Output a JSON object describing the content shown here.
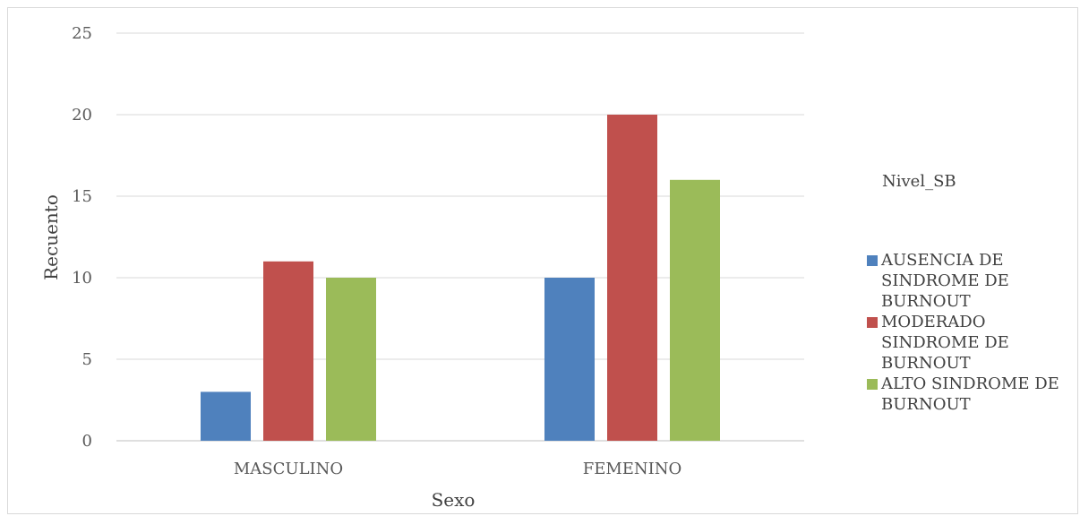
{
  "chart_data": {
    "type": "bar",
    "categories": [
      "MASCULINO",
      "FEMENINO"
    ],
    "series": [
      {
        "name": "AUSENCIA DE SINDROME DE BURNOUT",
        "values": [
          3,
          10
        ],
        "color": "#4f81bd",
        "legend_lines": [
          "AUSENCIA DE",
          "SINDROME DE",
          "BURNOUT"
        ]
      },
      {
        "name": "MODERADO SINDROME DE BURNOUT",
        "values": [
          11,
          20
        ],
        "color": "#c0504d",
        "legend_lines": [
          "MODERADO",
          "SINDROME DE",
          "BURNOUT"
        ]
      },
      {
        "name": "ALTO SINDROME DE BURNOUT",
        "values": [
          10,
          16
        ],
        "color": "#9bbb59",
        "legend_lines": [
          "ALTO SINDROME DE",
          "BURNOUT"
        ]
      }
    ],
    "xlabel": "Sexo",
    "ylabel": "Recuento",
    "ylim": [
      0,
      25
    ],
    "yticks": [
      0,
      5,
      10,
      15,
      20,
      25
    ],
    "grid": true,
    "legend_title": "Nivel_SB",
    "legend_position": "right"
  }
}
